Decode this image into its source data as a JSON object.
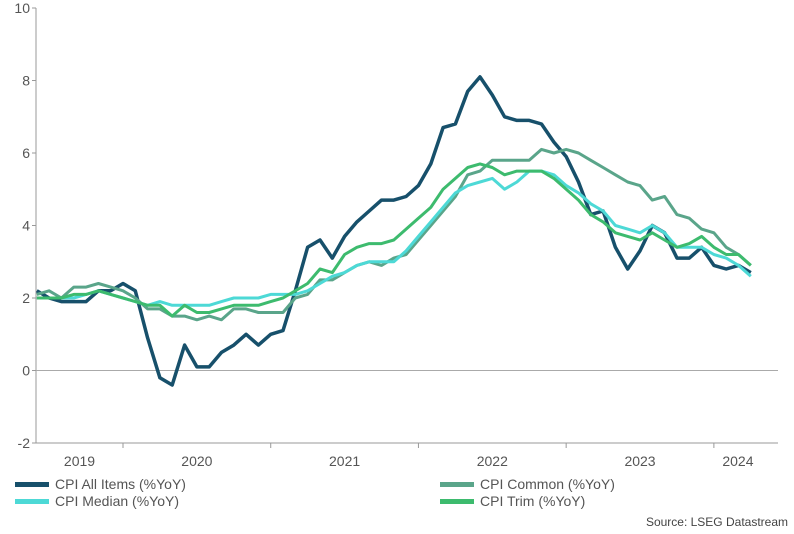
{
  "chart_data": {
    "type": "line",
    "title": "",
    "xlabel": "",
    "ylabel": "",
    "ylim": [
      -2,
      10
    ],
    "yticks": [
      -2,
      0,
      2,
      4,
      6,
      8,
      10
    ],
    "x_start": "2019-06",
    "x_end": "2024-04",
    "x_frequency": "monthly",
    "xtick_labels": [
      "2019",
      "2020",
      "2021",
      "2022",
      "2023",
      "2024"
    ],
    "grid": false,
    "legend_position": "bottom",
    "series": [
      {
        "name": "CPI All Items (%YoY)",
        "color": "#17506b",
        "values": [
          2.2,
          2.0,
          1.9,
          1.9,
          1.9,
          2.2,
          2.2,
          2.4,
          2.2,
          0.9,
          -0.2,
          -0.4,
          0.7,
          0.1,
          0.1,
          0.5,
          0.7,
          1.0,
          0.7,
          1.0,
          1.1,
          2.2,
          3.4,
          3.6,
          3.1,
          3.7,
          4.1,
          4.4,
          4.7,
          4.7,
          4.8,
          5.1,
          5.7,
          6.7,
          6.8,
          7.7,
          8.1,
          7.6,
          7.0,
          6.9,
          6.9,
          6.8,
          6.3,
          5.9,
          5.2,
          4.3,
          4.4,
          3.4,
          2.8,
          3.3,
          4.0,
          3.8,
          3.1,
          3.1,
          3.4,
          2.9,
          2.8,
          2.9,
          2.7
        ]
      },
      {
        "name": "CPI Common (%YoY)",
        "color": "#5aa58a",
        "values": [
          2.1,
          2.2,
          2.0,
          2.3,
          2.3,
          2.4,
          2.3,
          2.2,
          2.0,
          1.7,
          1.7,
          1.5,
          1.5,
          1.4,
          1.5,
          1.4,
          1.7,
          1.7,
          1.6,
          1.6,
          1.6,
          2.0,
          2.1,
          2.5,
          2.5,
          2.7,
          2.9,
          3.0,
          2.9,
          3.1,
          3.2,
          3.6,
          4.0,
          4.4,
          4.8,
          5.4,
          5.5,
          5.8,
          5.8,
          5.8,
          5.8,
          6.1,
          6.0,
          6.1,
          6.0,
          5.8,
          5.6,
          5.4,
          5.2,
          5.1,
          4.7,
          4.8,
          4.3,
          4.2,
          3.9,
          3.8,
          3.4,
          3.2,
          2.9
        ]
      },
      {
        "name": "CPI Median (%YoY)",
        "color": "#4dd9d6",
        "values": [
          2.0,
          2.0,
          2.0,
          2.0,
          2.1,
          2.2,
          2.1,
          2.0,
          1.9,
          1.8,
          1.9,
          1.8,
          1.8,
          1.8,
          1.8,
          1.9,
          2.0,
          2.0,
          2.0,
          2.1,
          2.1,
          2.1,
          2.2,
          2.4,
          2.6,
          2.7,
          2.9,
          3.0,
          3.0,
          3.0,
          3.3,
          3.7,
          4.1,
          4.5,
          4.9,
          5.1,
          5.2,
          5.3,
          5.0,
          5.2,
          5.5,
          5.5,
          5.4,
          5.1,
          4.9,
          4.6,
          4.4,
          4.0,
          3.9,
          3.8,
          4.0,
          3.8,
          3.4,
          3.4,
          3.4,
          3.2,
          3.1,
          2.9,
          2.6
        ]
      },
      {
        "name": "CPI Trim (%YoY)",
        "color": "#3dbb6e",
        "values": [
          2.0,
          2.0,
          2.0,
          2.1,
          2.1,
          2.2,
          2.1,
          2.0,
          1.9,
          1.8,
          1.8,
          1.5,
          1.8,
          1.6,
          1.6,
          1.7,
          1.8,
          1.8,
          1.8,
          1.9,
          2.0,
          2.2,
          2.4,
          2.8,
          2.7,
          3.2,
          3.4,
          3.5,
          3.5,
          3.6,
          3.9,
          4.2,
          4.5,
          5.0,
          5.3,
          5.6,
          5.7,
          5.6,
          5.4,
          5.5,
          5.5,
          5.5,
          5.3,
          5.0,
          4.7,
          4.3,
          4.1,
          3.8,
          3.7,
          3.6,
          3.8,
          3.6,
          3.4,
          3.5,
          3.7,
          3.4,
          3.2,
          3.2,
          2.9
        ]
      }
    ],
    "source": "Source: LSEG Datastream"
  }
}
